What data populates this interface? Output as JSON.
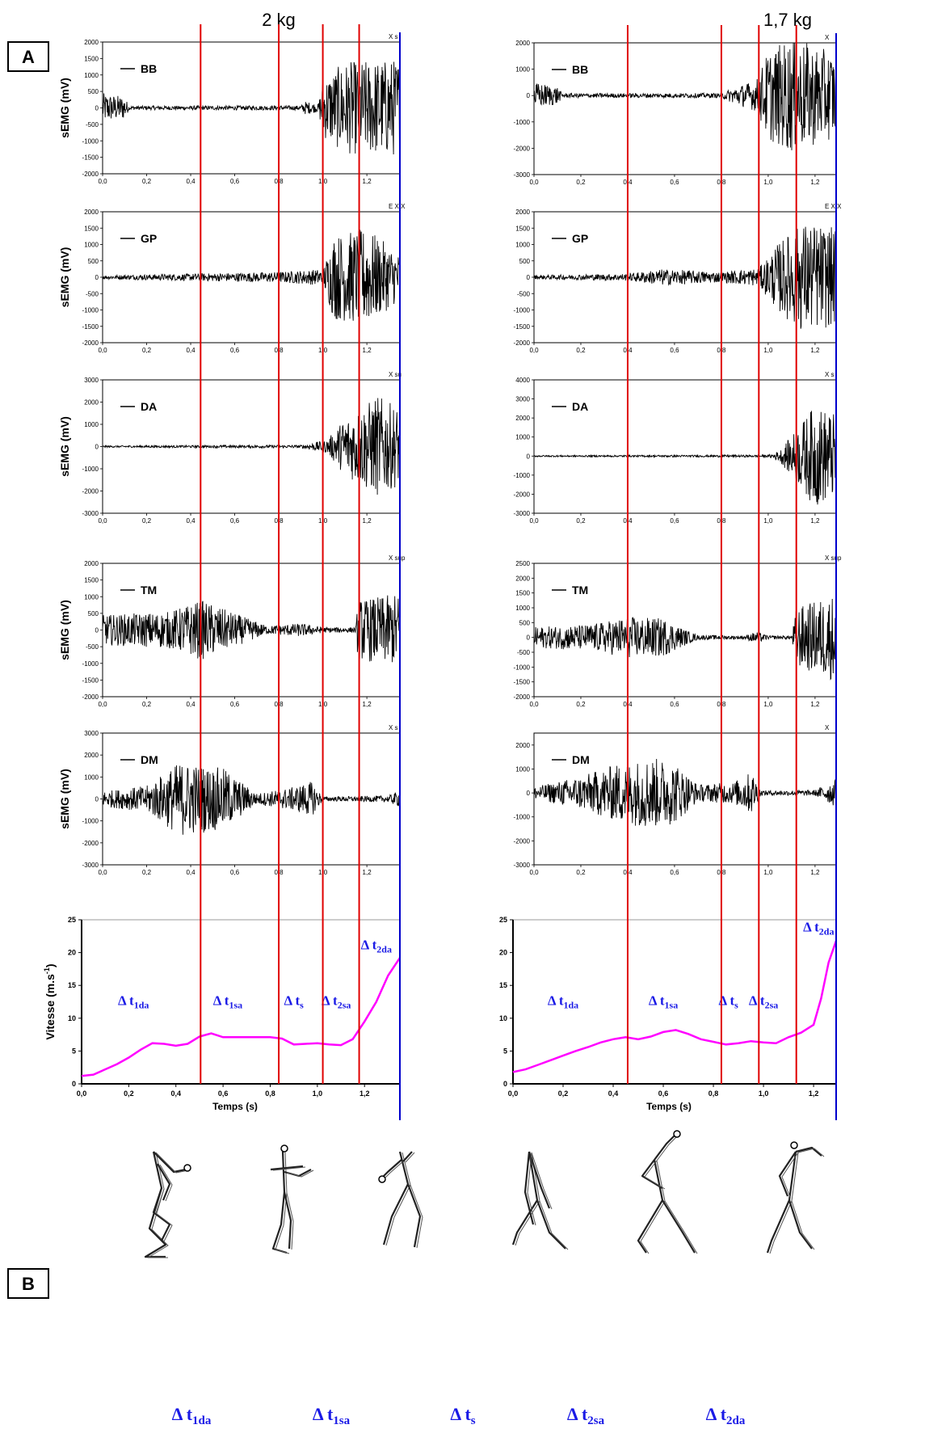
{
  "panel_labels": {
    "a": "A",
    "b": "B"
  },
  "chart_data": [
    {
      "type": "line",
      "column": 0,
      "title": "2 kg",
      "series_color": "#000000",
      "event_line_color": "#e00000",
      "end_line_color": "#0000cc",
      "event_times": [
        0.445,
        0.8,
        1.0,
        1.165
      ],
      "end_time": 1.35,
      "xlim": [
        0,
        1.35
      ],
      "x_ticks": [
        "0,0",
        "0,2",
        "0,4",
        "0,6",
        "0,8",
        "1,0",
        "1,2"
      ],
      "emg_panels": [
        {
          "muscle": "BB",
          "ylabel": "sEMG (mV)",
          "ylim": [
            -2000,
            2000
          ],
          "y_ticks": [
            "2000",
            "1500",
            "1000",
            "500",
            "0",
            "-500",
            "-1000",
            "-1500",
            "-2000"
          ],
          "corner_text": "X s",
          "profile": [
            [
              0.0,
              450
            ],
            [
              0.1,
              350
            ],
            [
              0.12,
              60
            ],
            [
              0.9,
              70
            ],
            [
              0.92,
              200
            ],
            [
              0.98,
              120
            ],
            [
              1.0,
              900
            ],
            [
              1.1,
              1400
            ],
            [
              1.35,
              1500
            ]
          ]
        },
        {
          "muscle": "GP",
          "ylabel": "sEMG (mV)",
          "ylim": [
            -2000,
            2000
          ],
          "y_ticks": [
            "2000",
            "1500",
            "1000",
            "500",
            "0",
            "-500",
            "-1000",
            "-1500",
            "-2000"
          ],
          "corner_text": "E X X",
          "profile": [
            [
              0.0,
              60
            ],
            [
              0.4,
              110
            ],
            [
              0.8,
              160
            ],
            [
              1.0,
              250
            ],
            [
              1.05,
              1300
            ],
            [
              1.2,
              1500
            ],
            [
              1.35,
              700
            ]
          ]
        },
        {
          "muscle": "DA",
          "ylabel": "sEMG (mV)",
          "ylim": [
            -3000,
            3000
          ],
          "y_ticks": [
            "3000",
            "2000",
            "1000",
            "0",
            "-1000",
            "-2000",
            "-3000"
          ],
          "corner_text": "X su",
          "profile": [
            [
              0.0,
              40
            ],
            [
              0.9,
              70
            ],
            [
              1.02,
              300
            ],
            [
              1.1,
              1300
            ],
            [
              1.25,
              2300
            ],
            [
              1.35,
              1700
            ]
          ]
        },
        {
          "muscle": "TM",
          "ylabel": "sEMG (mV)",
          "ylim": [
            -2000,
            2000
          ],
          "y_ticks": [
            "2000",
            "1500",
            "1000",
            "500",
            "0",
            "-500",
            "-1000",
            "-1500",
            "-2000"
          ],
          "corner_text": "X sup",
          "profile": [
            [
              0.0,
              450
            ],
            [
              0.3,
              550
            ],
            [
              0.45,
              900
            ],
            [
              0.6,
              500
            ],
            [
              0.75,
              120
            ],
            [
              0.9,
              200
            ],
            [
              1.0,
              80
            ],
            [
              1.15,
              80
            ],
            [
              1.16,
              900
            ],
            [
              1.35,
              1100
            ]
          ]
        },
        {
          "muscle": "DM",
          "ylabel": "sEMG (mV)",
          "ylim": [
            -3000,
            3000
          ],
          "y_ticks": [
            "3000",
            "2000",
            "1000",
            "0",
            "-1000",
            "-2000",
            "-3000"
          ],
          "corner_text": "X s",
          "profile": [
            [
              0.0,
              350
            ],
            [
              0.2,
              600
            ],
            [
              0.35,
              1700
            ],
            [
              0.55,
              1400
            ],
            [
              0.7,
              250
            ],
            [
              0.85,
              500
            ],
            [
              0.95,
              800
            ],
            [
              1.0,
              100
            ],
            [
              1.3,
              150
            ],
            [
              1.35,
              400
            ]
          ]
        }
      ],
      "velocity_panel": {
        "ylabel": "Vitesse (m.s-1)",
        "xlabel": "Temps (s)",
        "ylim": [
          0,
          25
        ],
        "y_ticks": [
          "25",
          "20",
          "15",
          "10",
          "5",
          "0"
        ],
        "x_ticks": [
          "0,0",
          "0,2",
          "0,4",
          "0,6",
          "0,8",
          "1,0",
          "1,2"
        ],
        "line_color": "#ff00ff",
        "points": [
          [
            0.0,
            1.2
          ],
          [
            0.05,
            1.4
          ],
          [
            0.1,
            2.2
          ],
          [
            0.15,
            3.0
          ],
          [
            0.2,
            4.0
          ],
          [
            0.25,
            5.2
          ],
          [
            0.3,
            6.2
          ],
          [
            0.35,
            6.1
          ],
          [
            0.4,
            5.8
          ],
          [
            0.45,
            6.1
          ],
          [
            0.5,
            7.2
          ],
          [
            0.55,
            7.7
          ],
          [
            0.6,
            7.1
          ],
          [
            0.7,
            7.1
          ],
          [
            0.8,
            7.1
          ],
          [
            0.85,
            6.9
          ],
          [
            0.9,
            6.0
          ],
          [
            0.95,
            6.1
          ],
          [
            1.0,
            6.2
          ],
          [
            1.05,
            6.0
          ],
          [
            1.1,
            5.9
          ],
          [
            1.15,
            6.8
          ],
          [
            1.2,
            9.5
          ],
          [
            1.25,
            12.5
          ],
          [
            1.3,
            16.5
          ],
          [
            1.35,
            19.2
          ]
        ],
        "phase_labels": [
          {
            "x": 0.22,
            "y": 12,
            "delta": "Δ",
            "t": "t",
            "sub": "1da"
          },
          {
            "x": 0.62,
            "y": 12,
            "delta": "Δ",
            "t": "t",
            "sub": "1sa"
          },
          {
            "x": 0.9,
            "y": 12,
            "delta": "Δ",
            "t": "t",
            "sub": "s"
          },
          {
            "x": 1.08,
            "y": 12,
            "delta": "Δ",
            "t": "t",
            "sub": "2sa"
          },
          {
            "x": 1.25,
            "y": 20.5,
            "delta": "Δ",
            "t": "t",
            "sub": "2da"
          }
        ]
      }
    },
    {
      "type": "line",
      "column": 1,
      "title": "1,7 kg",
      "series_color": "#000000",
      "event_line_color": "#e00000",
      "end_line_color": "#0000cc",
      "event_times": [
        0.4,
        0.8,
        0.96,
        1.12
      ],
      "end_time": 1.29,
      "xlim": [
        0,
        1.29
      ],
      "x_ticks": [
        "0,0",
        "0,2",
        "0,4",
        "0,6",
        "0,8",
        "1,0",
        "1,2"
      ],
      "emg_panels": [
        {
          "muscle": "BB",
          "ylabel": "",
          "ylim": [
            -3000,
            2000
          ],
          "y_ticks": [
            "2000",
            "1000",
            "0",
            "-1000",
            "-2000",
            "-3000"
          ],
          "corner_text": "X",
          "profile": [
            [
              0.0,
              500
            ],
            [
              0.1,
              350
            ],
            [
              0.12,
              80
            ],
            [
              0.8,
              90
            ],
            [
              0.85,
              300
            ],
            [
              0.95,
              600
            ],
            [
              1.0,
              1700
            ],
            [
              1.1,
              2200
            ],
            [
              1.29,
              1600
            ]
          ]
        },
        {
          "muscle": "GP",
          "ylabel": "",
          "ylim": [
            -2000,
            2000
          ],
          "y_ticks": [
            "2000",
            "1500",
            "1000",
            "500",
            "0",
            "-500",
            "-1000",
            "-1500",
            "-2000"
          ],
          "corner_text": "E X X",
          "profile": [
            [
              0.0,
              60
            ],
            [
              0.4,
              110
            ],
            [
              0.55,
              250
            ],
            [
              0.8,
              160
            ],
            [
              0.96,
              280
            ],
            [
              1.05,
              1100
            ],
            [
              1.15,
              1700
            ],
            [
              1.29,
              1500
            ]
          ]
        },
        {
          "muscle": "DA",
          "ylabel": "",
          "ylim": [
            -3000,
            4000
          ],
          "y_ticks": [
            "4000",
            "3000",
            "2000",
            "1000",
            "0",
            "-1000",
            "-2000",
            "-3000"
          ],
          "corner_text": "X s",
          "profile": [
            [
              0.0,
              40
            ],
            [
              1.0,
              60
            ],
            [
              1.05,
              300
            ],
            [
              1.12,
              1400
            ],
            [
              1.2,
              2700
            ],
            [
              1.29,
              2200
            ]
          ]
        },
        {
          "muscle": "TM",
          "ylabel": "",
          "ylim": [
            -2000,
            2500
          ],
          "y_ticks": [
            "2500",
            "2000",
            "1500",
            "1000",
            "500",
            "0",
            "-500",
            "-1000",
            "-1500",
            "-2000"
          ],
          "corner_text": "X sup",
          "profile": [
            [
              0.0,
              350
            ],
            [
              0.25,
              450
            ],
            [
              0.4,
              700
            ],
            [
              0.55,
              650
            ],
            [
              0.65,
              250
            ],
            [
              0.7,
              80
            ],
            [
              0.9,
              60
            ],
            [
              0.95,
              200
            ],
            [
              1.0,
              60
            ],
            [
              1.1,
              60
            ],
            [
              1.12,
              1000
            ],
            [
              1.29,
              1500
            ]
          ]
        },
        {
          "muscle": "DM",
          "ylabel": "",
          "ylim": [
            -3000,
            2500
          ],
          "y_ticks": [
            "2000",
            "1000",
            "0",
            "-1000",
            "-2000",
            "-3000"
          ],
          "corner_text": "X",
          "profile": [
            [
              0.0,
              250
            ],
            [
              0.2,
              700
            ],
            [
              0.35,
              1200
            ],
            [
              0.5,
              1500
            ],
            [
              0.6,
              1300
            ],
            [
              0.7,
              350
            ],
            [
              0.85,
              450
            ],
            [
              0.93,
              900
            ],
            [
              0.97,
              100
            ],
            [
              1.2,
              120
            ],
            [
              1.29,
              600
            ]
          ]
        }
      ],
      "velocity_panel": {
        "ylabel": "",
        "xlabel": "Temps (s)",
        "ylim": [
          0,
          25
        ],
        "y_ticks": [
          "25",
          "20",
          "15",
          "10",
          "5",
          "0"
        ],
        "x_ticks": [
          "0,0",
          "0,2",
          "0,4",
          "0,6",
          "0,8",
          "1,0",
          "1,2"
        ],
        "line_color": "#ff00ff",
        "points": [
          [
            0.0,
            1.8
          ],
          [
            0.05,
            2.2
          ],
          [
            0.1,
            2.9
          ],
          [
            0.15,
            3.6
          ],
          [
            0.2,
            4.3
          ],
          [
            0.25,
            5.0
          ],
          [
            0.3,
            5.6
          ],
          [
            0.35,
            6.3
          ],
          [
            0.4,
            6.8
          ],
          [
            0.45,
            7.1
          ],
          [
            0.5,
            6.8
          ],
          [
            0.55,
            7.2
          ],
          [
            0.6,
            7.9
          ],
          [
            0.65,
            8.2
          ],
          [
            0.7,
            7.6
          ],
          [
            0.75,
            6.8
          ],
          [
            0.8,
            6.4
          ],
          [
            0.85,
            6.0
          ],
          [
            0.9,
            6.2
          ],
          [
            0.95,
            6.5
          ],
          [
            1.0,
            6.3
          ],
          [
            1.05,
            6.2
          ],
          [
            1.1,
            7.1
          ],
          [
            1.15,
            7.8
          ],
          [
            1.2,
            9.0
          ],
          [
            1.23,
            13
          ],
          [
            1.26,
            18.5
          ],
          [
            1.29,
            21.8
          ]
        ],
        "phase_labels": [
          {
            "x": 0.2,
            "y": 12,
            "delta": "Δ",
            "t": "t",
            "sub": "1da"
          },
          {
            "x": 0.6,
            "y": 12,
            "delta": "Δ",
            "t": "t",
            "sub": "1sa"
          },
          {
            "x": 0.86,
            "y": 12,
            "delta": "Δ",
            "t": "t",
            "sub": "s"
          },
          {
            "x": 1.0,
            "y": 12,
            "delta": "Δ",
            "t": "t",
            "sub": "2sa"
          },
          {
            "x": 1.22,
            "y": 23.2,
            "delta": "Δ",
            "t": "t",
            "sub": "2da"
          }
        ]
      }
    }
  ],
  "panel_b": {
    "figures": [
      {
        "pose": "crouch-back"
      },
      {
        "pose": "upright-turn"
      },
      {
        "pose": "turn-step"
      },
      {
        "pose": "lunge-left"
      },
      {
        "pose": "open-stride"
      },
      {
        "pose": "release"
      }
    ],
    "phase_labels": [
      {
        "delta": "Δ",
        "t": "t",
        "sub": "1da"
      },
      {
        "delta": "Δ",
        "t": "t",
        "sub": "1sa"
      },
      {
        "delta": "Δ",
        "t": "t",
        "sub": "s"
      },
      {
        "delta": "Δ",
        "t": "t",
        "sub": "2sa"
      },
      {
        "delta": "Δ",
        "t": "t",
        "sub": "2da"
      }
    ]
  }
}
